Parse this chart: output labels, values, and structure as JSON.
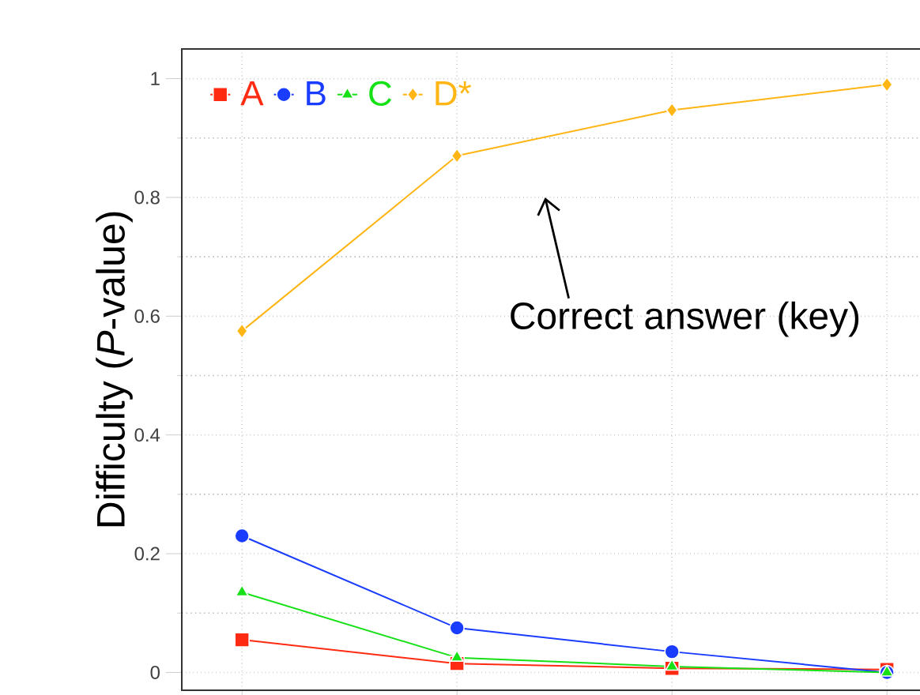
{
  "chart_data": {
    "type": "line",
    "ylabel": "Difficulty (*P*-value)",
    "categories": [
      null,
      null,
      null,
      null
    ],
    "series": [
      {
        "name": "A",
        "color": "#ff2a12",
        "marker": "square",
        "values": [
          0.055,
          0.015,
          0.007,
          0.005
        ]
      },
      {
        "name": "B",
        "color": "#1a3cff",
        "marker": "circle",
        "values": [
          0.23,
          0.075,
          0.035,
          0.0
        ]
      },
      {
        "name": "C",
        "color": "#16e016",
        "marker": "triangle",
        "values": [
          0.135,
          0.025,
          0.01,
          0.0
        ]
      },
      {
        "name": "D*",
        "color": "#ffb514",
        "marker": "diamond",
        "values": [
          0.575,
          0.87,
          0.947,
          0.99
        ]
      }
    ],
    "ylim": [
      -0.03,
      1.05
    ],
    "yticks": [
      0,
      0.2,
      0.4,
      0.6,
      0.8,
      1
    ],
    "grid": true,
    "legend": "top left",
    "annotations": [
      "Correct answer (key)"
    ]
  }
}
